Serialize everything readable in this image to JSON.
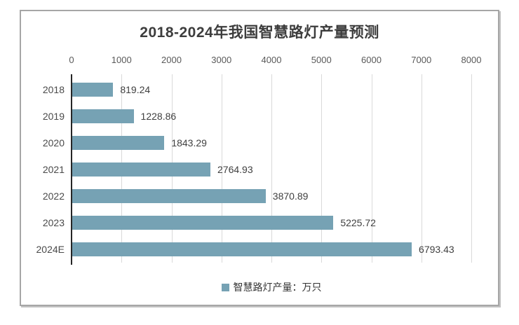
{
  "window": {
    "background_color": "#ffffff",
    "frame_border_color": "#a6a6a6"
  },
  "chart_data": {
    "type": "bar",
    "orientation": "horizontal",
    "title": "2018-2024年我国智慧路灯产量预测",
    "categories": [
      "2018",
      "2019",
      "2020",
      "2021",
      "2022",
      "2023",
      "2024E"
    ],
    "values": [
      819.24,
      1228.86,
      1843.29,
      2764.93,
      3870.89,
      5225.72,
      6793.43
    ],
    "value_labels": [
      "819.24",
      "1228.86",
      "1843.29",
      "2764.93",
      "3870.89",
      "5225.72",
      "6793.43"
    ],
    "xlabel": "",
    "ylabel": "",
    "x_axis": {
      "position": "top",
      "min": 0,
      "max": 8000,
      "tick_interval": 1000,
      "ticks": [
        0,
        1000,
        2000,
        3000,
        4000,
        5000,
        6000,
        7000,
        8000
      ]
    },
    "grid": "vertical-only",
    "legend": {
      "position": "bottom-center",
      "entries": [
        {
          "label": "智慧路灯产量：万只",
          "swatch_color": "#76a2b4"
        }
      ]
    },
    "colors": {
      "bar": "#76a2b4",
      "grid": "#d9d9d9",
      "axis_line": "#262626",
      "title_text": "#3d3d3d",
      "label_text": "#4a4a4a",
      "tick_text": "#595959"
    }
  }
}
